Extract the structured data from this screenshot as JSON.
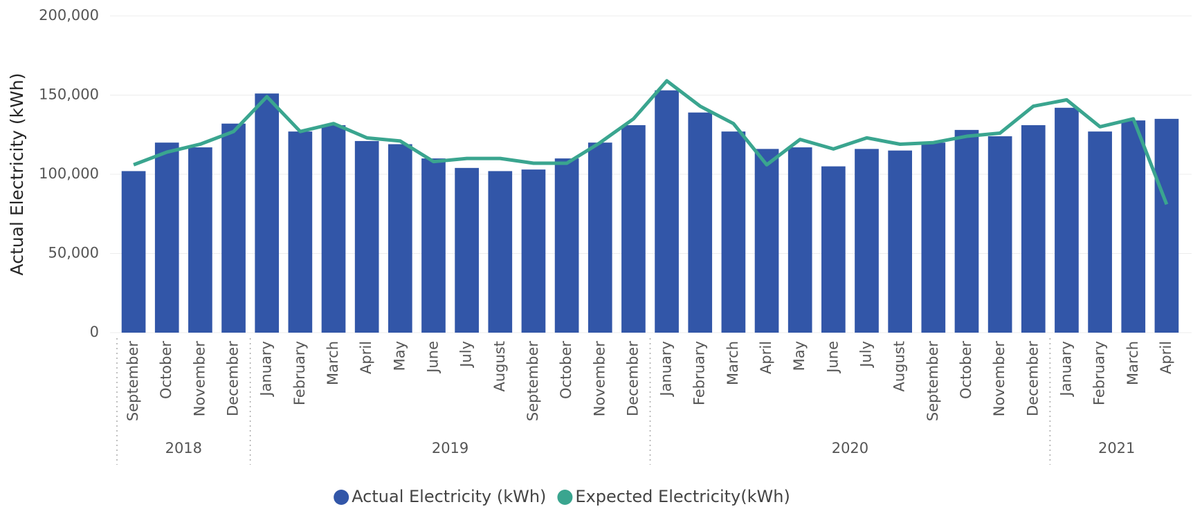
{
  "chart_data": {
    "type": "bar_line",
    "y_label": "Actual Electricity (kWh)",
    "category_groups": [
      {
        "label": "2018",
        "categories": [
          "September",
          "October",
          "November",
          "December"
        ]
      },
      {
        "label": "2019",
        "categories": [
          "January",
          "February",
          "March",
          "April",
          "May",
          "June",
          "July",
          "August",
          "September",
          "October",
          "November",
          "December"
        ]
      },
      {
        "label": "2020",
        "categories": [
          "January",
          "February",
          "March",
          "April",
          "May",
          "June",
          "July",
          "August",
          "September",
          "October",
          "November",
          "December"
        ]
      },
      {
        "label": "2021",
        "categories": [
          "January",
          "February",
          "March",
          "April"
        ]
      }
    ],
    "series": [
      {
        "name": "Actual Electricity (kWh)",
        "type": "bar",
        "color": "#3256a8",
        "values": [
          102000,
          120000,
          117000,
          132000,
          151000,
          127000,
          131000,
          121000,
          119000,
          110000,
          104000,
          102000,
          103000,
          110000,
          120000,
          131000,
          153000,
          139000,
          127000,
          116000,
          117000,
          105000,
          116000,
          115000,
          120000,
          128000,
          124000,
          131000,
          142000,
          127000,
          134000,
          135000
        ]
      },
      {
        "name": "Expected Electricity(kWh)",
        "type": "line",
        "color": "#3aa58f",
        "values": [
          106000,
          114000,
          119000,
          127000,
          149000,
          127000,
          132000,
          123000,
          121000,
          108000,
          110000,
          110000,
          107000,
          107000,
          120000,
          135000,
          159000,
          143000,
          132000,
          106000,
          122000,
          116000,
          123000,
          119000,
          120000,
          124000,
          126000,
          143000,
          147000,
          130000,
          135000,
          81000
        ]
      }
    ],
    "ylim": [
      0,
      200000
    ],
    "yticks": [
      0,
      {
        "value": 50000,
        "label": "50,000"
      },
      {
        "value": 100000,
        "label": "100,000"
      },
      {
        "value": 150000,
        "label": "150,000"
      },
      {
        "value": 200000,
        "label": "200,000"
      }
    ],
    "grid": true,
    "legend": "bottom"
  }
}
